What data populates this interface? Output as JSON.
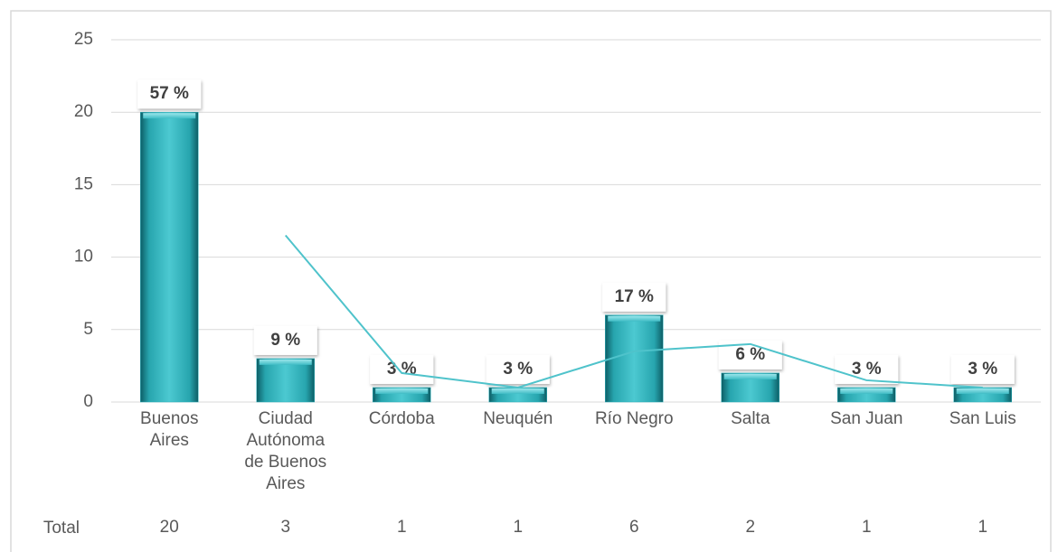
{
  "chart_data": {
    "type": "bar",
    "categories": [
      "Buenos Aires",
      "Ciudad Autónoma de Buenos Aires",
      "Córdoba",
      "Neuquén",
      "Río Negro",
      "Salta",
      "San Juan",
      "San Luis"
    ],
    "values": [
      20,
      3,
      1,
      1,
      6,
      2,
      1,
      1
    ],
    "percent_values": [
      57,
      9,
      3,
      3,
      17,
      6,
      3,
      3
    ],
    "percent_labels": [
      "57 %",
      "9 %",
      "3 %",
      "3 %",
      "17 %",
      "6 %",
      "3 %",
      "3 %"
    ],
    "color": "#2fb3bd",
    "trend": {
      "color": "#4fc3cb",
      "values": [
        null,
        11.5,
        2,
        1,
        3.5,
        4,
        1.5,
        1
      ]
    },
    "table_label": "Total",
    "ylim": [
      0,
      25
    ],
    "yticks": [
      0,
      5,
      10,
      15,
      20,
      25
    ],
    "grid": true
  }
}
